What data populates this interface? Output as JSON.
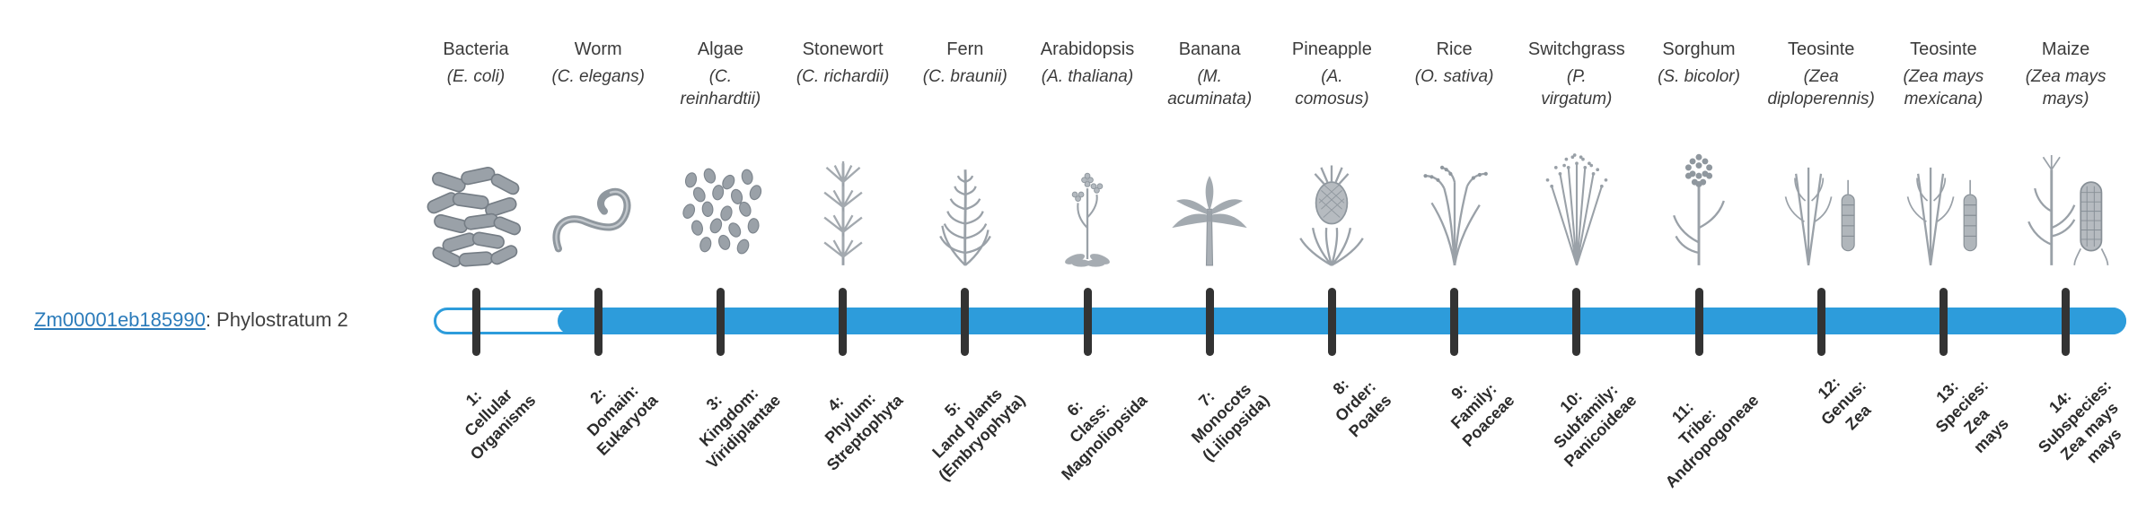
{
  "gene": {
    "id": "Zm00001eb185990",
    "suffix": ": Phylostratum 2"
  },
  "colors": {
    "bar": "#2D9CDB",
    "tick": "#333333",
    "link": "#2B7BBA"
  },
  "timeline": {
    "fill_starts_at_stratum": 2,
    "items": [
      {
        "common": "Bacteria",
        "sci": [
          "(E. coli)"
        ],
        "icon": "bacteria-icon",
        "stratum": [
          "1:",
          "Cellular",
          "Organisms"
        ]
      },
      {
        "common": "Worm",
        "sci": [
          "(C. elegans)"
        ],
        "icon": "worm-icon",
        "stratum": [
          "2:",
          "Domain:",
          "Eukaryota"
        ]
      },
      {
        "common": "Algae",
        "sci": [
          "(C.",
          "reinhardtii)"
        ],
        "icon": "algae-icon",
        "stratum": [
          "3:",
          "Kingdom:",
          "Viridiplantae"
        ]
      },
      {
        "common": "Stonewort",
        "sci": [
          "(C. richardii)"
        ],
        "icon": "stonewort-icon",
        "stratum": [
          "4:",
          "Phylum:",
          "Streptophyta"
        ]
      },
      {
        "common": "Fern",
        "sci": [
          "(C. braunii)"
        ],
        "icon": "fern-icon",
        "stratum": [
          "5:",
          "Land plants",
          "(Embryophyta)"
        ]
      },
      {
        "common": "Arabidopsis",
        "sci": [
          "(A. thaliana)"
        ],
        "icon": "arabidopsis-icon",
        "stratum": [
          "6:",
          "Class:",
          "Magnoliopsida"
        ]
      },
      {
        "common": "Banana",
        "sci": [
          "(M.",
          "acuminata)"
        ],
        "icon": "banana-icon",
        "stratum": [
          "7:",
          "Monocots",
          "(Liliopsida)"
        ]
      },
      {
        "common": "Pineapple",
        "sci": [
          "(A.",
          "comosus)"
        ],
        "icon": "pineapple-icon",
        "stratum": [
          "8:",
          "Order:",
          "Poales"
        ]
      },
      {
        "common": "Rice",
        "sci": [
          "(O. sativa)"
        ],
        "icon": "rice-icon",
        "stratum": [
          "9:",
          "Family:",
          "Poaceae"
        ]
      },
      {
        "common": "Switchgrass",
        "sci": [
          "(P.",
          "virgatum)"
        ],
        "icon": "switchgrass-icon",
        "stratum": [
          "10:",
          "Subfamily:",
          "Panicoideae"
        ]
      },
      {
        "common": "Sorghum",
        "sci": [
          "(S. bicolor)"
        ],
        "icon": "sorghum-icon",
        "stratum": [
          "11:",
          "Tribe:",
          "Andropogoneae"
        ]
      },
      {
        "common": "Teosinte",
        "sci": [
          "(Zea",
          "diploperennis)"
        ],
        "icon": "teosinte-icon",
        "stratum": [
          "12:",
          "Genus:",
          "Zea"
        ]
      },
      {
        "common": "Teosinte",
        "sci": [
          "(Zea mays",
          "mexicana)"
        ],
        "icon": "teosinte-icon",
        "stratum": [
          "13:",
          "Species:",
          "Zea",
          "mays"
        ]
      },
      {
        "common": "Maize",
        "sci": [
          "(Zea mays",
          "mays)"
        ],
        "icon": "maize-icon",
        "stratum": [
          "14:",
          "Subspecies:",
          "Zea mays",
          "mays"
        ]
      }
    ]
  }
}
